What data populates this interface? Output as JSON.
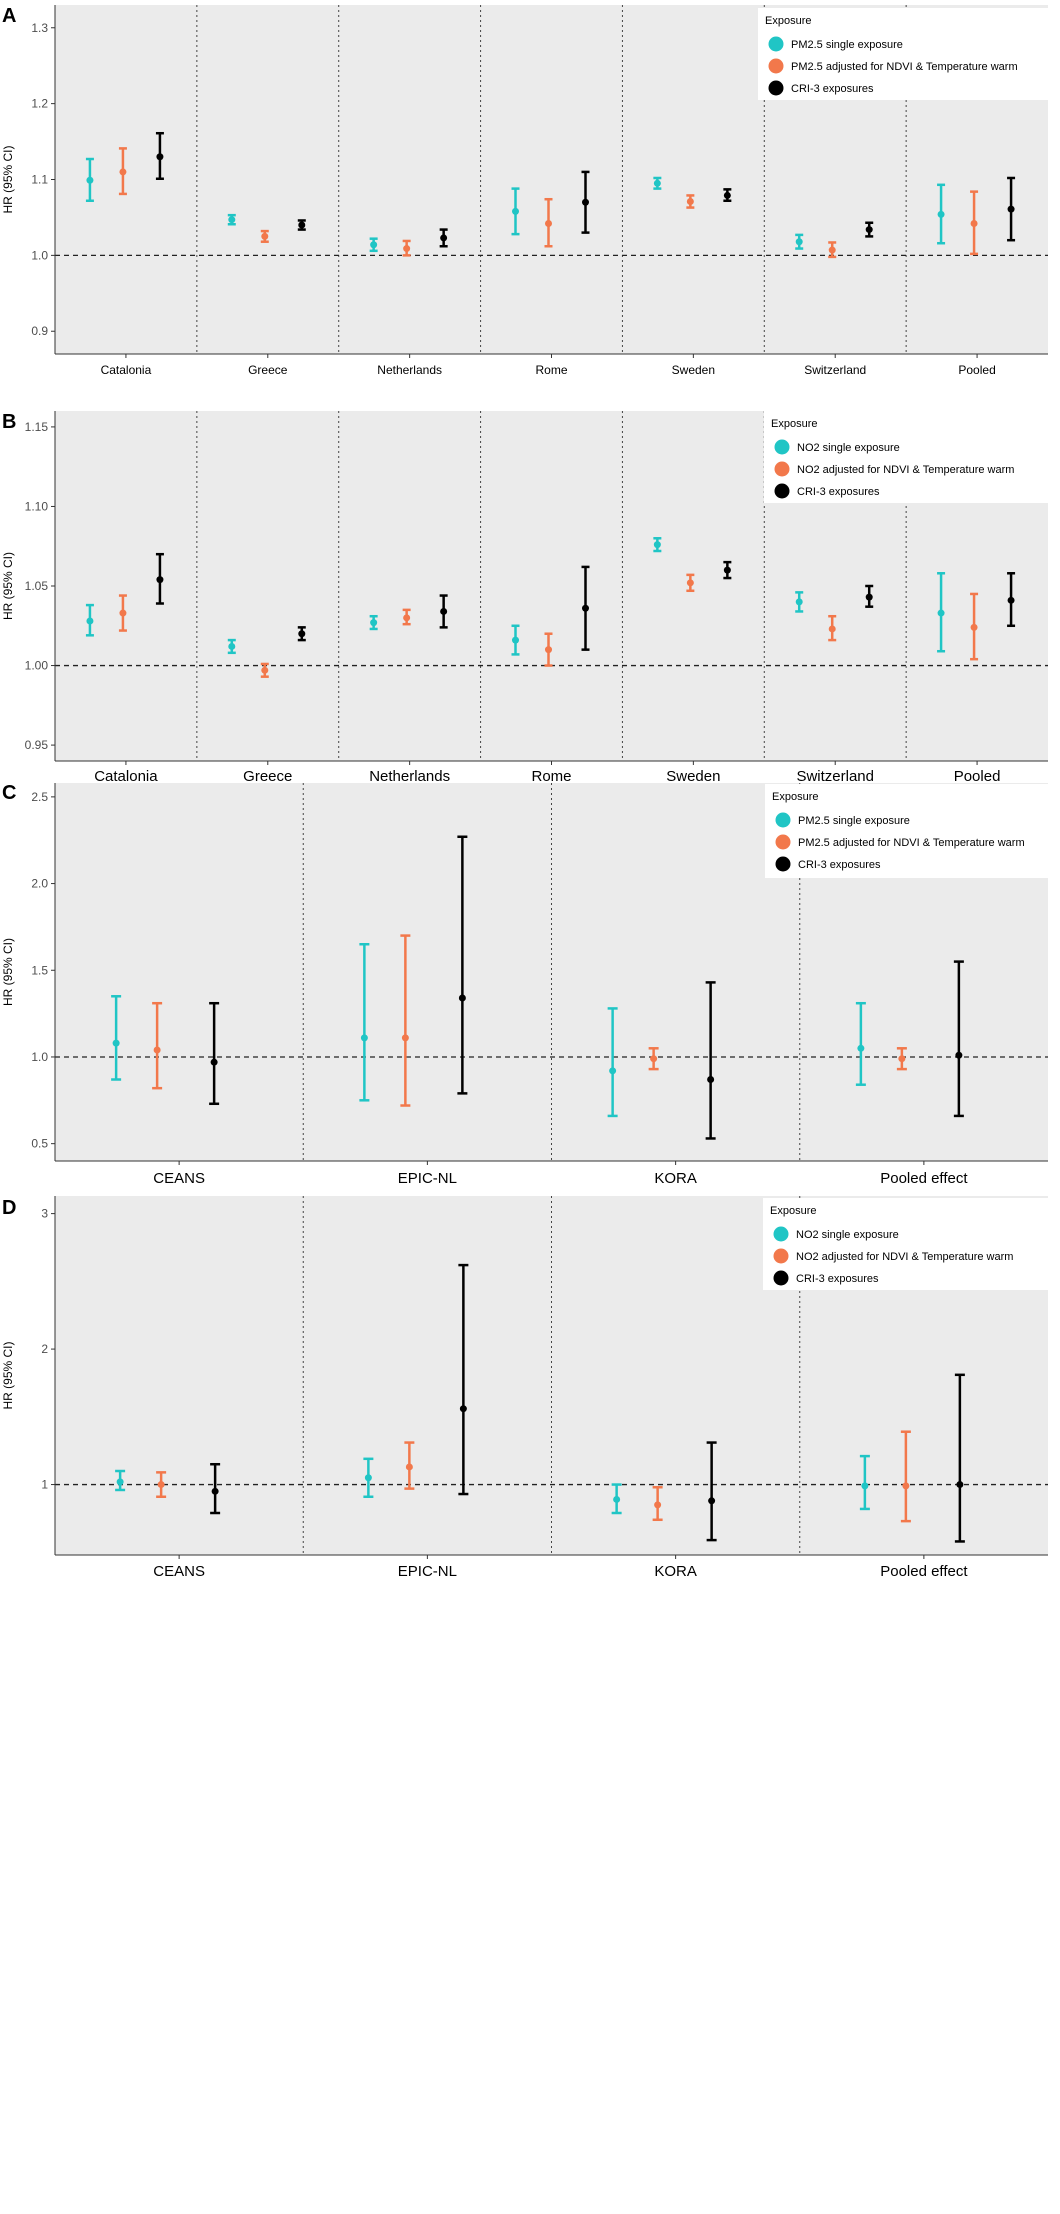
{
  "colors": {
    "panel_bg": "#ebebeb",
    "legend_bg": "#ffffff",
    "series": [
      "#20c5c5",
      "#f2784b",
      "#000000"
    ]
  },
  "chart_data": [
    {
      "type": "errorbar",
      "panel": "A",
      "ylabel": "HR (95% CI)",
      "ylim": [
        0.87,
        1.33
      ],
      "yticks": [
        0.9,
        1.0,
        1.1,
        1.2,
        1.3
      ],
      "ytick_labels": [
        "0.9",
        "1.0",
        "1.1",
        "1.2",
        "1.3"
      ],
      "reference_line": 1.0,
      "categories": [
        "Catalonia",
        "Greece",
        "Netherlands",
        "Rome",
        "Sweden",
        "Switzerland",
        "Pooled"
      ],
      "legend_title": "Exposure",
      "series": [
        {
          "name": "PM2.5 single exposure",
          "points": [
            [
              1.099,
              1.072,
              1.127
            ],
            [
              1.047,
              1.041,
              1.053
            ],
            [
              1.014,
              1.006,
              1.022
            ],
            [
              1.058,
              1.028,
              1.088
            ],
            [
              1.095,
              1.088,
              1.102
            ],
            [
              1.018,
              1.009,
              1.027
            ],
            [
              1.054,
              1.016,
              1.093
            ]
          ]
        },
        {
          "name": "PM2.5 adjusted for NDVI & Temperature warm",
          "points": [
            [
              1.11,
              1.081,
              1.141
            ],
            [
              1.025,
              1.018,
              1.032
            ],
            [
              1.009,
              1.0,
              1.019
            ],
            [
              1.042,
              1.012,
              1.074
            ],
            [
              1.071,
              1.063,
              1.079
            ],
            [
              1.007,
              0.998,
              1.017
            ],
            [
              1.042,
              1.002,
              1.084
            ]
          ]
        },
        {
          "name": "CRI-3 exposures",
          "points": [
            [
              1.13,
              1.101,
              1.161
            ],
            [
              1.04,
              1.034,
              1.046
            ],
            [
              1.023,
              1.012,
              1.034
            ],
            [
              1.07,
              1.03,
              1.11
            ],
            [
              1.079,
              1.072,
              1.087
            ],
            [
              1.034,
              1.025,
              1.043
            ],
            [
              1.061,
              1.02,
              1.102
            ]
          ]
        }
      ]
    },
    {
      "type": "errorbar",
      "panel": "B",
      "ylabel": "HR (95% CI)",
      "ylim": [
        0.94,
        1.16
      ],
      "yticks": [
        0.95,
        1.0,
        1.05,
        1.1,
        1.15
      ],
      "ytick_labels": [
        "0.95",
        "1.00",
        "1.05",
        "1.10",
        "1.15"
      ],
      "reference_line": 1.0,
      "categories": [
        "Catalonia",
        "Greece",
        "Netherlands",
        "Rome",
        "Sweden",
        "Switzerland",
        "Pooled"
      ],
      "legend_title": "Exposure",
      "series": [
        {
          "name": "NO2 single exposure",
          "points": [
            [
              1.028,
              1.019,
              1.038
            ],
            [
              1.012,
              1.008,
              1.016
            ],
            [
              1.027,
              1.023,
              1.031
            ],
            [
              1.016,
              1.007,
              1.025
            ],
            [
              1.076,
              1.072,
              1.08
            ],
            [
              1.04,
              1.034,
              1.046
            ],
            [
              1.033,
              1.009,
              1.058
            ]
          ]
        },
        {
          "name": "NO2 adjusted for NDVI & Temperature warm",
          "points": [
            [
              1.033,
              1.022,
              1.044
            ],
            [
              0.997,
              0.993,
              1.001
            ],
            [
              1.03,
              1.026,
              1.035
            ],
            [
              1.01,
              1.0,
              1.02
            ],
            [
              1.052,
              1.047,
              1.057
            ],
            [
              1.023,
              1.016,
              1.031
            ],
            [
              1.024,
              1.004,
              1.045
            ]
          ]
        },
        {
          "name": "CRI-3 exposures",
          "points": [
            [
              1.054,
              1.039,
              1.07
            ],
            [
              1.02,
              1.016,
              1.024
            ],
            [
              1.034,
              1.024,
              1.044
            ],
            [
              1.036,
              1.01,
              1.062
            ],
            [
              1.06,
              1.055,
              1.065
            ],
            [
              1.043,
              1.037,
              1.05
            ],
            [
              1.041,
              1.025,
              1.058
            ]
          ]
        }
      ]
    },
    {
      "type": "errorbar",
      "panel": "C",
      "ylabel": "HR (95% CI)",
      "ylim": [
        0.4,
        2.58
      ],
      "yticks": [
        0.5,
        1.0,
        1.5,
        2.0,
        2.5
      ],
      "ytick_labels": [
        "0.5",
        "1.0",
        "1.5",
        "2.0",
        "2.5"
      ],
      "reference_line": 1.0,
      "categories": [
        "CEANS",
        "EPIC-NL",
        "KORA",
        "Pooled effect"
      ],
      "legend_title": "Exposure",
      "series": [
        {
          "name": "PM2.5 single exposure",
          "points": [
            [
              1.08,
              0.87,
              1.35
            ],
            [
              1.11,
              0.75,
              1.65
            ],
            [
              0.92,
              0.66,
              1.28
            ],
            [
              1.05,
              0.84,
              1.31
            ]
          ]
        },
        {
          "name": "PM2.5 adjusted for NDVI & Temperature warm",
          "points": [
            [
              1.04,
              0.82,
              1.31
            ],
            [
              1.11,
              0.72,
              1.7
            ],
            [
              0.99,
              0.93,
              1.05
            ],
            [
              0.99,
              0.93,
              1.05
            ]
          ]
        },
        {
          "name": "CRI-3 exposures",
          "points": [
            [
              0.97,
              0.73,
              1.31
            ],
            [
              1.34,
              0.79,
              2.27
            ],
            [
              0.87,
              0.53,
              1.43
            ],
            [
              1.01,
              0.66,
              1.55
            ]
          ]
        }
      ]
    },
    {
      "type": "errorbar",
      "panel": "D",
      "ylabel": "HR (95% CI)",
      "ylim": [
        0.48,
        3.13
      ],
      "yticks": [
        1,
        2,
        3
      ],
      "ytick_labels": [
        "1",
        "2",
        "3"
      ],
      "reference_line": 1.0,
      "categories": [
        "CEANS",
        "EPIC-NL",
        "KORA",
        "Pooled effect"
      ],
      "legend_title": "Exposure",
      "series": [
        {
          "name": "NO2 single exposure",
          "points": [
            [
              1.02,
              0.96,
              1.1
            ],
            [
              1.05,
              0.91,
              1.19
            ],
            [
              0.89,
              0.79,
              1.0
            ],
            [
              0.99,
              0.82,
              1.21
            ]
          ]
        },
        {
          "name": "NO2 adjusted for NDVI & Temperature warm",
          "points": [
            [
              1.0,
              0.91,
              1.09
            ],
            [
              1.13,
              0.97,
              1.31
            ],
            [
              0.85,
              0.74,
              0.98
            ],
            [
              0.99,
              0.73,
              1.39
            ]
          ]
        },
        {
          "name": "CRI-3 exposures",
          "points": [
            [
              0.95,
              0.79,
              1.15
            ],
            [
              1.56,
              0.93,
              2.62
            ],
            [
              0.88,
              0.59,
              1.31
            ],
            [
              1.0,
              0.58,
              1.81
            ]
          ]
        }
      ]
    }
  ]
}
